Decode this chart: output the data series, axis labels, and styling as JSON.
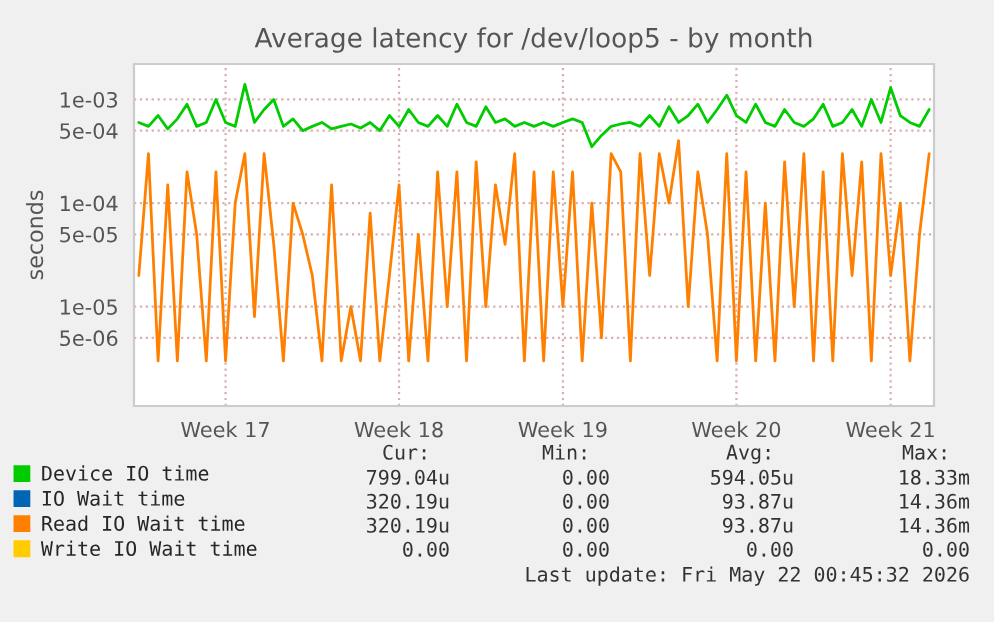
{
  "chart_data": {
    "type": "line",
    "title": "Average latency for /dev/loop5 - by month",
    "ylabel": "seconds",
    "log": "y",
    "grid": true,
    "legend": "bottom left",
    "marker": "none",
    "line_style": "solid",
    "categories": [
      null,
      null,
      null,
      null,
      null,
      null,
      null,
      null,
      null,
      "Week 17",
      null,
      null,
      null,
      null,
      null,
      null,
      null,
      null,
      null,
      null,
      null,
      null,
      null,
      null,
      null,
      null,
      null,
      "Week 18",
      null,
      null,
      null,
      null,
      null,
      null,
      null,
      null,
      null,
      null,
      null,
      null,
      null,
      null,
      null,
      null,
      "Week 19",
      null,
      null,
      null,
      null,
      null,
      null,
      null,
      null,
      null,
      null,
      null,
      null,
      null,
      null,
      null,
      null,
      null,
      "Week 20",
      null,
      null,
      null,
      null,
      null,
      null,
      null,
      null,
      null,
      null,
      null,
      null,
      null,
      null,
      null,
      "Week 21",
      null,
      null,
      null,
      null
    ],
    "ylim": [
      1.1e-06,
      0.0022
    ],
    "yticks": [
      {
        "value": 5e-06,
        "label": "5e-06"
      },
      {
        "value": 1e-05,
        "label": "1e-05"
      },
      {
        "value": 5e-05,
        "label": "5e-05"
      },
      {
        "value": 0.0001,
        "label": "1e-04"
      },
      {
        "value": 0.0005,
        "label": "5e-04"
      },
      {
        "value": 0.001,
        "label": "1e-03"
      }
    ],
    "series": [
      {
        "name": "Device IO time",
        "color": "#00cc00",
        "values": [
          0.0006,
          0.00055,
          0.0007,
          0.00052,
          0.00065,
          0.0009,
          0.00055,
          0.0006,
          0.001,
          0.0006,
          0.00055,
          0.0014,
          0.0006,
          0.0008,
          0.001,
          0.00055,
          0.00065,
          0.0005,
          0.00055,
          0.0006,
          0.00052,
          0.00055,
          0.00058,
          0.00053,
          0.0006,
          0.0005,
          0.0007,
          0.00055,
          0.0008,
          0.0006,
          0.00055,
          0.0007,
          0.00055,
          0.0009,
          0.0006,
          0.00055,
          0.00085,
          0.0006,
          0.00065,
          0.00055,
          0.0006,
          0.00055,
          0.0006,
          0.00055,
          0.0006,
          0.00065,
          0.0006,
          0.00035,
          0.00045,
          0.00055,
          0.00058,
          0.0006,
          0.00055,
          0.0007,
          0.00055,
          0.00085,
          0.0006,
          0.0007,
          0.0009,
          0.0006,
          0.0008,
          0.0011,
          0.0007,
          0.0006,
          0.0009,
          0.0006,
          0.00055,
          0.0008,
          0.0006,
          0.00055,
          0.00065,
          0.0009,
          0.00055,
          0.0006,
          0.0008,
          0.00055,
          0.001,
          0.0006,
          0.0013,
          0.0007,
          0.0006,
          0.00055,
          0.0008
        ]
      },
      {
        "name": "IO Wait time",
        "color": "#0066b3",
        "values": [
          null,
          null,
          null,
          null,
          null,
          null,
          null,
          null,
          null,
          null,
          null,
          null,
          null,
          null,
          null,
          null,
          null,
          null,
          null,
          null,
          null,
          null,
          null,
          null,
          null,
          null,
          null,
          null,
          null,
          null,
          null,
          null,
          null,
          null,
          null,
          null,
          null,
          null,
          null,
          null,
          null,
          null,
          null,
          null,
          null,
          null,
          null,
          null,
          null,
          null,
          null,
          null,
          null,
          null,
          null,
          null,
          null,
          null,
          null,
          null,
          null,
          null,
          null,
          null,
          null,
          null,
          null,
          null,
          null,
          null,
          null,
          null,
          null,
          null,
          null,
          null,
          null,
          null,
          null,
          null,
          null,
          null,
          null
        ]
      },
      {
        "name": "Read IO Wait time",
        "color": "#ff8000",
        "values": [
          2e-05,
          0.0003,
          3e-06,
          0.00015,
          3e-06,
          0.0002,
          5e-05,
          3e-06,
          0.0002,
          3e-06,
          0.0001,
          0.0003,
          8e-06,
          0.0003,
          4e-05,
          3e-06,
          0.0001,
          5e-05,
          2e-05,
          3e-06,
          0.00015,
          3e-06,
          1e-05,
          3e-06,
          8e-05,
          3e-06,
          2e-05,
          0.00015,
          3e-06,
          5e-05,
          3e-06,
          0.0002,
          1e-05,
          0.0002,
          3e-06,
          0.00025,
          1e-05,
          0.00015,
          4e-05,
          0.0003,
          3e-06,
          0.0002,
          3e-06,
          0.0002,
          1e-05,
          0.0002,
          3e-06,
          0.0001,
          5e-06,
          0.0003,
          0.0002,
          3e-06,
          0.0003,
          2e-05,
          0.0003,
          0.0001,
          0.0004,
          1e-05,
          0.0002,
          5e-05,
          3e-06,
          0.0003,
          3e-06,
          0.0002,
          3e-06,
          0.0001,
          3e-06,
          0.00025,
          1e-05,
          0.0003,
          3e-06,
          0.0002,
          3e-06,
          0.0003,
          2e-05,
          0.00025,
          3e-06,
          0.0003,
          2e-05,
          0.0001,
          3e-06,
          5e-05,
          0.0003
        ]
      },
      {
        "name": "Write IO Wait time",
        "color": "#ffcc00",
        "values": [
          null,
          null,
          null,
          null,
          null,
          null,
          null,
          null,
          null,
          null,
          null,
          null,
          null,
          null,
          null,
          null,
          null,
          null,
          null,
          null,
          null,
          null,
          null,
          null,
          null,
          null,
          null,
          null,
          null,
          null,
          null,
          null,
          null,
          null,
          null,
          null,
          null,
          null,
          null,
          null,
          null,
          null,
          null,
          null,
          null,
          null,
          null,
          null,
          null,
          null,
          null,
          null,
          null,
          null,
          null,
          null,
          null,
          null,
          null,
          null,
          null,
          null,
          null,
          null,
          null,
          null,
          null,
          null,
          null,
          null,
          null,
          null,
          null,
          null,
          null,
          null,
          null,
          null,
          null,
          null,
          null,
          null,
          null
        ]
      }
    ],
    "annotations": [
      "Cur:",
      "Min:",
      "Avg:",
      "Max:",
      "799.04u",
      "0.00",
      "594.05u",
      "18.33m",
      "320.19u",
      "0.00",
      "93.87u",
      "14.36m",
      "320.19u",
      "0.00",
      "93.87u",
      "14.36m",
      "0.00",
      "0.00",
      "0.00",
      "0.00",
      "Last update: Fri May 22 00:45:32 2026"
    ]
  }
}
